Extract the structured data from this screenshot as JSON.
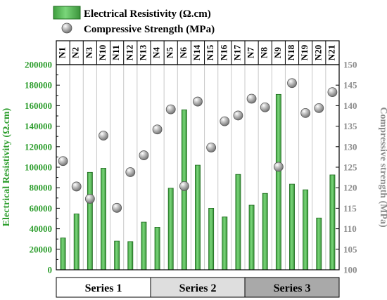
{
  "chart_data": {
    "type": "bar",
    "categories": [
      "N1",
      "N2",
      "N3",
      "N10",
      "N11",
      "N12",
      "N13",
      "N4",
      "N5",
      "N6",
      "N14",
      "N15",
      "N16",
      "N17",
      "N7",
      "N8",
      "N9",
      "N18",
      "N19",
      "N20",
      "N21"
    ],
    "series": [
      {
        "name": "Electrical Resistivity (Ω.cm)",
        "type": "bar",
        "axis": "left",
        "values": [
          31000,
          54500,
          95000,
          99000,
          28000,
          27500,
          46500,
          41500,
          79500,
          156000,
          102000,
          60000,
          51500,
          93000,
          63000,
          74500,
          171000,
          83500,
          78000,
          50500,
          92500
        ]
      },
      {
        "name": "Compressive Strength (MPa)",
        "type": "scatter",
        "axis": "right",
        "values": [
          126.5,
          120.3,
          117.3,
          132.7,
          115.1,
          123.8,
          127.9,
          134.2,
          139.1,
          120.4,
          141.0,
          129.8,
          136.2,
          137.6,
          141.7,
          139.6,
          125.1,
          145.5,
          138.2,
          139.4,
          143.3
        ]
      }
    ],
    "ylabel": "Electrical Resistivity (Ω.cm)",
    "y2label": "Compressive strength (MPa)",
    "ylim": [
      0,
      200000
    ],
    "y2lim": [
      100,
      150
    ],
    "yticks": [
      "0",
      "20000",
      "40000",
      "60000",
      "80000",
      "100000",
      "120000",
      "140000",
      "160000",
      "180000",
      "200000"
    ],
    "y2ticks": [
      "100",
      "105",
      "110",
      "115",
      "120",
      "125",
      "130",
      "135",
      "140",
      "145",
      "150"
    ],
    "legend": {
      "position": "top-left",
      "items": [
        "Electrical Resistivity (Ω.cm)",
        "Compressive Strength (MPa)"
      ]
    },
    "groups": [
      {
        "label": "Series 1",
        "count": 7
      },
      {
        "label": "Series 2",
        "count": 7
      },
      {
        "label": "Series 3",
        "count": 7
      }
    ],
    "grid": "vertical",
    "colors": {
      "bar_fill": "#5cc05c",
      "bar_edge": "#1f6b1f",
      "left_axis": "#2e9e2e",
      "right_axis": "#8c8c8c",
      "marker": "#a6a6a6",
      "group_fills": [
        "#ffffff",
        "#dedede",
        "#a9a9a9"
      ]
    }
  }
}
